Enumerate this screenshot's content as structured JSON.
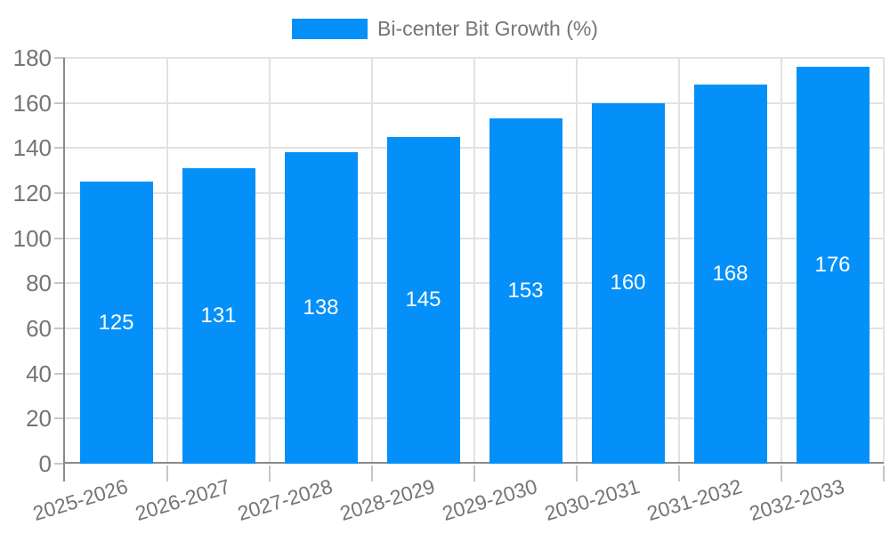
{
  "chart_data": {
    "type": "bar",
    "title": "",
    "xlabel": "",
    "ylabel": "",
    "categories": [
      "2025-2026",
      "2026-2027",
      "2027-2028",
      "2028-2029",
      "2029-2030",
      "2030-2031",
      "2031-2032",
      "2032-2033"
    ],
    "series": [
      {
        "name": "Bi-center Bit Growth (%)",
        "values": [
          125,
          131,
          138,
          145,
          153,
          160,
          168,
          176
        ]
      }
    ],
    "value_labels": [
      "125",
      "131",
      "138",
      "145",
      "153",
      "160",
      "168",
      "176"
    ],
    "ylim": [
      0,
      180
    ],
    "y_ticks": [
      0,
      20,
      40,
      60,
      80,
      100,
      120,
      140,
      160,
      180
    ],
    "grid": true,
    "legend_position": "top-center",
    "colors": {
      "bar": "#0490f8",
      "value_label": "#ffffff",
      "axis_text": "#757575",
      "axis_line": "#8a8a8a",
      "gridline": "#e2e2e2",
      "tick": "#c6c6c6",
      "background": "#ffffff"
    }
  }
}
